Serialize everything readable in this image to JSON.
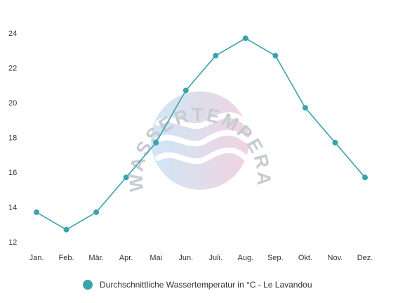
{
  "chart_data": {
    "type": "line",
    "categories": [
      "Jan.",
      "Feb.",
      "Mär.",
      "Apr.",
      "Mai",
      "Jun.",
      "Juli.",
      "Aug.",
      "Sep.",
      "Okt.",
      "Nov.",
      "Dez."
    ],
    "series": [
      {
        "name": "Durchschnittliche Wassertemperatur in °C - Le Lavandou",
        "values": [
          13.7,
          12.7,
          13.7,
          15.7,
          17.7,
          20.7,
          22.7,
          23.7,
          22.7,
          19.7,
          17.7,
          15.7
        ]
      }
    ],
    "yticks": [
      12,
      14,
      16,
      18,
      20,
      22,
      24
    ],
    "ylim": [
      12,
      24
    ],
    "grid": false,
    "legend": "bottom",
    "colors": {
      "line": "#3aa3ad",
      "point": "#3aa3ad"
    }
  },
  "watermark": {
    "text": "WASSERTEMPERATUR.ORG",
    "icon": "waves-icon"
  }
}
